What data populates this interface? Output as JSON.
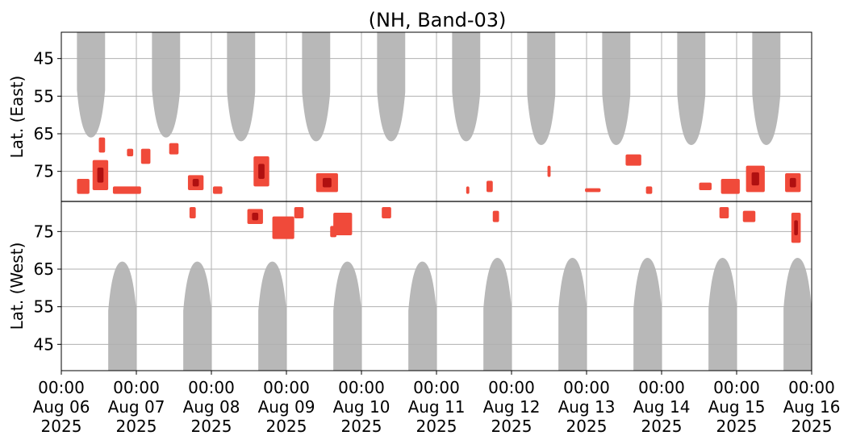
{
  "chart_data": {
    "type": "heatmap",
    "title": "(NH, Band-03)",
    "ylabel_top": "Lat. (East)",
    "ylabel_bottom": "Lat. (West)",
    "x_start_hours": 0,
    "x_end_hours": 240,
    "x_ticks": [
      {
        "hours": 0,
        "line1": "00:00",
        "line2": "Aug 06",
        "line3": "2025"
      },
      {
        "hours": 24,
        "line1": "00:00",
        "line2": "Aug 07",
        "line3": "2025"
      },
      {
        "hours": 48,
        "line1": "00:00",
        "line2": "Aug 08",
        "line3": "2025"
      },
      {
        "hours": 72,
        "line1": "00:00",
        "line2": "Aug 09",
        "line3": "2025"
      },
      {
        "hours": 96,
        "line1": "00:00",
        "line2": "Aug 10",
        "line3": "2025"
      },
      {
        "hours": 120,
        "line1": "00:00",
        "line2": "Aug 11",
        "line3": "2025"
      },
      {
        "hours": 144,
        "line1": "00:00",
        "line2": "Aug 12",
        "line3": "2025"
      },
      {
        "hours": 168,
        "line1": "00:00",
        "line2": "Aug 13",
        "line3": "2025"
      },
      {
        "hours": 192,
        "line1": "00:00",
        "line2": "Aug 14",
        "line3": "2025"
      },
      {
        "hours": 216,
        "line1": "00:00",
        "line2": "Aug 15",
        "line3": "2025"
      },
      {
        "hours": 240,
        "line1": "00:00",
        "line2": "Aug 16",
        "line3": "2025"
      }
    ],
    "y_ticks_east": [
      45,
      55,
      65,
      75
    ],
    "y_ticks_west": [
      75,
      65,
      55,
      45
    ],
    "lat_range": [
      38,
      83
    ],
    "grid": true,
    "colors": {
      "daylight": "#b8b8b8",
      "activity_light": "#f04a3a",
      "activity_dark": "#b01010",
      "grid": "#b0b0b0",
      "divider": "#000000"
    },
    "daylight_east": [
      {
        "center_hours": 9.5,
        "width_hours": 9,
        "min_lat": 66
      },
      {
        "center_hours": 33.5,
        "width_hours": 9,
        "min_lat": 66
      },
      {
        "center_hours": 57.5,
        "width_hours": 9,
        "min_lat": 67
      },
      {
        "center_hours": 81.5,
        "width_hours": 9,
        "min_lat": 67
      },
      {
        "center_hours": 105.5,
        "width_hours": 9,
        "min_lat": 67
      },
      {
        "center_hours": 129.5,
        "width_hours": 9,
        "min_lat": 67
      },
      {
        "center_hours": 153.5,
        "width_hours": 9,
        "min_lat": 68
      },
      {
        "center_hours": 177.5,
        "width_hours": 9,
        "min_lat": 68
      },
      {
        "center_hours": 201.5,
        "width_hours": 9,
        "min_lat": 68
      },
      {
        "center_hours": 225.5,
        "width_hours": 9,
        "min_lat": 68
      }
    ],
    "daylight_west": [
      {
        "center_hours": 19.5,
        "width_hours": 9,
        "min_lat": 67
      },
      {
        "center_hours": 43.5,
        "width_hours": 9,
        "min_lat": 67
      },
      {
        "center_hours": 67.5,
        "width_hours": 9,
        "min_lat": 67
      },
      {
        "center_hours": 91.5,
        "width_hours": 9,
        "min_lat": 67
      },
      {
        "center_hours": 115.5,
        "width_hours": 9,
        "min_lat": 67
      },
      {
        "center_hours": 139.5,
        "width_hours": 9,
        "min_lat": 68
      },
      {
        "center_hours": 163.5,
        "width_hours": 9,
        "min_lat": 68
      },
      {
        "center_hours": 187.5,
        "width_hours": 9,
        "min_lat": 68
      },
      {
        "center_hours": 211.5,
        "width_hours": 9,
        "min_lat": 68
      },
      {
        "center_hours": 235.5,
        "width_hours": 9,
        "min_lat": 68
      }
    ],
    "activity": [
      {
        "hours": 12.5,
        "side": "east",
        "lat": 76,
        "width_hours": 5,
        "lat_span": 8,
        "dark": true
      },
      {
        "hours": 7,
        "side": "east",
        "lat": 79,
        "width_hours": 4,
        "lat_span": 4,
        "dark": false
      },
      {
        "hours": 13,
        "side": "east",
        "lat": 68,
        "width_hours": 2,
        "lat_span": 4,
        "dark": false
      },
      {
        "hours": 21,
        "side": "east",
        "lat": 80,
        "width_hours": 9,
        "lat_span": 2,
        "dark": false
      },
      {
        "hours": 22,
        "side": "east",
        "lat": 70,
        "width_hours": 2,
        "lat_span": 2,
        "dark": false
      },
      {
        "hours": 27,
        "side": "east",
        "lat": 71,
        "width_hours": 3,
        "lat_span": 4,
        "dark": false
      },
      {
        "hours": 36,
        "side": "east",
        "lat": 69,
        "width_hours": 3,
        "lat_span": 3,
        "dark": false
      },
      {
        "hours": 43,
        "side": "east",
        "lat": 78,
        "width_hours": 5,
        "lat_span": 4,
        "dark": true
      },
      {
        "hours": 42,
        "side": "west",
        "lat": 80,
        "width_hours": 2,
        "lat_span": 3,
        "dark": false
      },
      {
        "hours": 50,
        "side": "east",
        "lat": 80,
        "width_hours": 3,
        "lat_span": 2,
        "dark": false
      },
      {
        "hours": 64,
        "side": "east",
        "lat": 75,
        "width_hours": 5,
        "lat_span": 8,
        "dark": true
      },
      {
        "hours": 62,
        "side": "west",
        "lat": 79,
        "width_hours": 5,
        "lat_span": 4,
        "dark": true
      },
      {
        "hours": 71,
        "side": "west",
        "lat": 76,
        "width_hours": 7,
        "lat_span": 6,
        "dark": false
      },
      {
        "hours": 76,
        "side": "west",
        "lat": 80,
        "width_hours": 3,
        "lat_span": 3,
        "dark": false
      },
      {
        "hours": 85,
        "side": "east",
        "lat": 78,
        "width_hours": 7,
        "lat_span": 5,
        "dark": true
      },
      {
        "hours": 90,
        "side": "west",
        "lat": 77,
        "width_hours": 6,
        "lat_span": 6,
        "dark": false
      },
      {
        "hours": 87,
        "side": "west",
        "lat": 75,
        "width_hours": 2,
        "lat_span": 3,
        "dark": false
      },
      {
        "hours": 104,
        "side": "west",
        "lat": 80,
        "width_hours": 3,
        "lat_span": 3,
        "dark": false
      },
      {
        "hours": 130,
        "side": "east",
        "lat": 80,
        "width_hours": 1,
        "lat_span": 2,
        "dark": false
      },
      {
        "hours": 137,
        "side": "east",
        "lat": 79,
        "width_hours": 2,
        "lat_span": 3,
        "dark": false
      },
      {
        "hours": 139,
        "side": "west",
        "lat": 79,
        "width_hours": 2,
        "lat_span": 3,
        "dark": false
      },
      {
        "hours": 156,
        "side": "east",
        "lat": 75,
        "width_hours": 1,
        "lat_span": 3,
        "dark": false
      },
      {
        "hours": 170,
        "side": "east",
        "lat": 80,
        "width_hours": 5,
        "lat_span": 1,
        "dark": false
      },
      {
        "hours": 183,
        "side": "east",
        "lat": 72,
        "width_hours": 5,
        "lat_span": 3,
        "dark": false
      },
      {
        "hours": 188,
        "side": "east",
        "lat": 80,
        "width_hours": 2,
        "lat_span": 2,
        "dark": false
      },
      {
        "hours": 206,
        "side": "east",
        "lat": 79,
        "width_hours": 4,
        "lat_span": 2,
        "dark": false
      },
      {
        "hours": 214,
        "side": "east",
        "lat": 79,
        "width_hours": 6,
        "lat_span": 4,
        "dark": false
      },
      {
        "hours": 222,
        "side": "east",
        "lat": 77,
        "width_hours": 6,
        "lat_span": 7,
        "dark": true
      },
      {
        "hours": 212,
        "side": "west",
        "lat": 80,
        "width_hours": 3,
        "lat_span": 3,
        "dark": false
      },
      {
        "hours": 220,
        "side": "west",
        "lat": 79,
        "width_hours": 4,
        "lat_span": 3,
        "dark": false
      },
      {
        "hours": 234,
        "side": "east",
        "lat": 78,
        "width_hours": 5,
        "lat_span": 5,
        "dark": true
      },
      {
        "hours": 235,
        "side": "west",
        "lat": 76,
        "width_hours": 3,
        "lat_span": 8,
        "dark": true
      }
    ]
  }
}
